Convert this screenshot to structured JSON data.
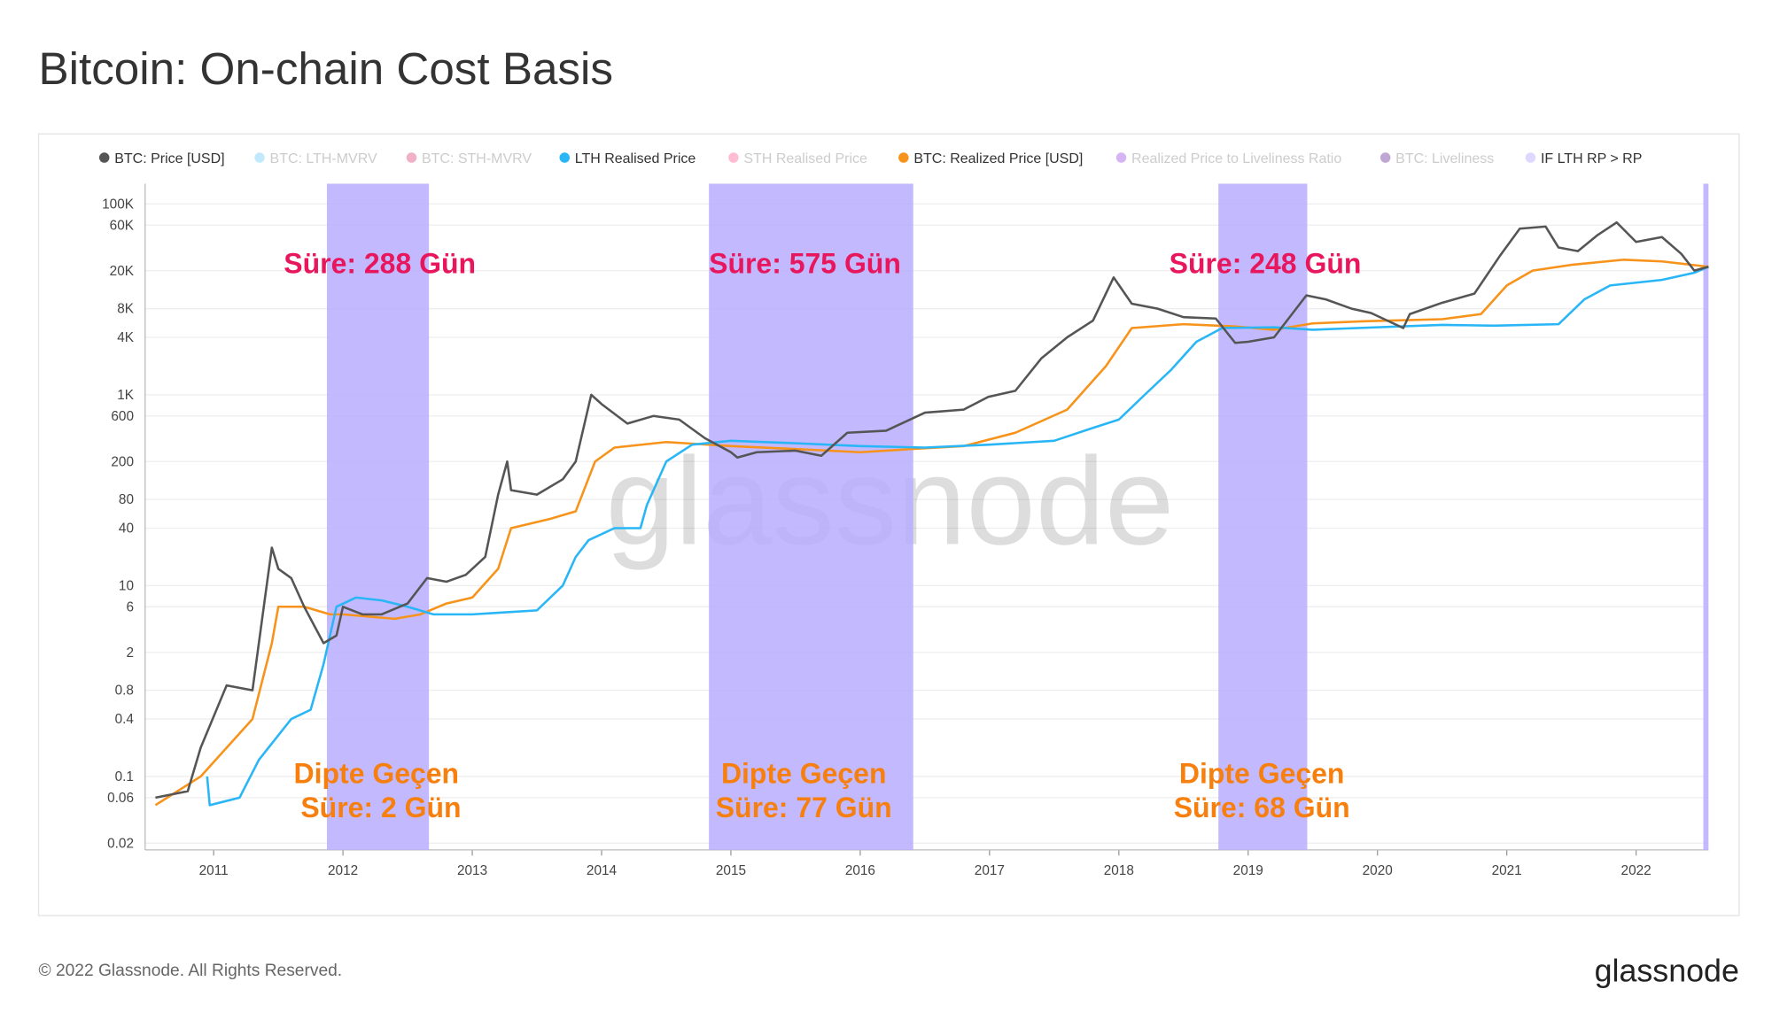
{
  "chart_data": {
    "type": "line",
    "title": "Bitcoin: On-chain Cost Basis",
    "legend": [
      {
        "name": "BTC: Price [USD]",
        "color": "#555555",
        "active": true
      },
      {
        "name": "BTC: LTH-MVRV",
        "color": "#4fc3f7",
        "active": false
      },
      {
        "name": "BTC: STH-MVRV",
        "color": "#d81b60",
        "active": false
      },
      {
        "name": "LTH Realised Price",
        "color": "#29b6f6",
        "active": true
      },
      {
        "name": "STH Realised Price",
        "color": "#ff4081",
        "active": false
      },
      {
        "name": "BTC: Realized Price [USD]",
        "color": "#f7931a",
        "active": true
      },
      {
        "name": "Realized Price to Liveliness Ratio",
        "color": "#8a2be2",
        "active": false
      },
      {
        "name": "BTC: Liveliness",
        "color": "#4b0082",
        "active": false
      },
      {
        "name": "IF LTH RP > RP",
        "color": "#ddd8ff",
        "active": true
      }
    ],
    "series": [
      {
        "name": "BTC: Price [USD]",
        "color": "#555555",
        "x": [
          2010.55,
          2010.8,
          2010.9,
          2011.1,
          2011.3,
          2011.4,
          2011.45,
          2011.5,
          2011.6,
          2011.7,
          2011.85,
          2011.95,
          2012.0,
          2012.15,
          2012.3,
          2012.5,
          2012.65,
          2012.8,
          2012.95,
          2013.1,
          2013.2,
          2013.27,
          2013.3,
          2013.5,
          2013.7,
          2013.8,
          2013.92,
          2014.0,
          2014.2,
          2014.4,
          2014.6,
          2014.8,
          2015.0,
          2015.05,
          2015.2,
          2015.5,
          2015.7,
          2015.9,
          2016.2,
          2016.5,
          2016.8,
          2016.99,
          2017.2,
          2017.4,
          2017.6,
          2017.8,
          2017.96,
          2018.1,
          2018.3,
          2018.5,
          2018.75,
          2018.9,
          2019.0,
          2019.2,
          2019.45,
          2019.6,
          2019.8,
          2019.95,
          2020.2,
          2020.25,
          2020.5,
          2020.75,
          2020.95,
          2021.1,
          2021.3,
          2021.4,
          2021.55,
          2021.7,
          2021.85,
          2022.0,
          2022.2,
          2022.35,
          2022.45,
          2022.56
        ],
        "values": [
          0.06,
          0.07,
          0.2,
          0.9,
          0.8,
          8,
          25,
          15,
          12,
          6,
          2.5,
          3,
          6,
          5,
          5,
          6.5,
          12,
          11,
          13,
          20,
          90,
          200,
          100,
          90,
          130,
          200,
          1000,
          800,
          500,
          600,
          550,
          350,
          250,
          220,
          250,
          260,
          230,
          400,
          420,
          650,
          700,
          950,
          1100,
          2400,
          4000,
          6000,
          17000,
          9000,
          8000,
          6500,
          6300,
          3500,
          3600,
          4000,
          11000,
          10000,
          8000,
          7200,
          5000,
          7000,
          9200,
          11500,
          29000,
          55000,
          58000,
          35000,
          32000,
          47000,
          64000,
          40000,
          45000,
          30000,
          20000,
          22000
        ]
      },
      {
        "name": "LTH Realised Price",
        "color": "#29b6f6",
        "x": [
          2010.95,
          2010.97,
          2011.2,
          2011.35,
          2011.6,
          2011.75,
          2011.85,
          2011.95,
          2012.1,
          2012.3,
          2012.5,
          2012.7,
          2013.0,
          2013.2,
          2013.5,
          2013.7,
          2013.8,
          2013.9,
          2014.1,
          2014.3,
          2014.35,
          2014.5,
          2014.7,
          2015.0,
          2015.5,
          2016.0,
          2016.5,
          2017.0,
          2017.5,
          2017.8,
          2018.0,
          2018.2,
          2018.4,
          2018.6,
          2018.8,
          2019.2,
          2019.5,
          2020.0,
          2020.5,
          2020.9,
          2021.4,
          2021.6,
          2021.8,
          2022.2,
          2022.45,
          2022.56
        ],
        "values": [
          0.1,
          0.05,
          0.06,
          0.15,
          0.4,
          0.5,
          1.5,
          6,
          7.5,
          7,
          6,
          5,
          5,
          5.2,
          5.5,
          10,
          20,
          30,
          40,
          40,
          70,
          200,
          300,
          330,
          310,
          290,
          280,
          300,
          330,
          450,
          550,
          1000,
          1800,
          3600,
          5000,
          5100,
          4800,
          5100,
          5400,
          5300,
          5500,
          10000,
          14000,
          16000,
          19000,
          22000
        ]
      },
      {
        "name": "BTC: Realized Price [USD]",
        "color": "#f7931a",
        "x": [
          2010.55,
          2010.9,
          2011.1,
          2011.3,
          2011.45,
          2011.5,
          2011.7,
          2011.9,
          2012.0,
          2012.4,
          2012.6,
          2012.8,
          2013.0,
          2013.2,
          2013.3,
          2013.6,
          2013.8,
          2013.95,
          2014.1,
          2014.5,
          2015.0,
          2015.5,
          2016.0,
          2016.4,
          2016.8,
          2017.2,
          2017.6,
          2017.9,
          2018.1,
          2018.5,
          2018.9,
          2019.2,
          2019.5,
          2019.9,
          2020.5,
          2020.8,
          2021.0,
          2021.2,
          2021.5,
          2021.9,
          2022.2,
          2022.56
        ],
        "values": [
          0.05,
          0.1,
          0.2,
          0.4,
          2.5,
          6,
          6,
          5,
          5,
          4.5,
          5,
          6.5,
          7.5,
          15,
          40,
          50,
          60,
          200,
          280,
          320,
          290,
          270,
          250,
          270,
          290,
          400,
          700,
          2000,
          5000,
          5500,
          5200,
          4800,
          5600,
          5900,
          6200,
          7000,
          14000,
          20000,
          23000,
          26000,
          25000,
          22000
        ]
      }
    ],
    "regions": {
      "name": "IF LTH RP > RP",
      "color": "#b9adff",
      "ranges": [
        [
          2011.876,
          2012.665
        ],
        [
          2014.83,
          2016.41
        ],
        [
          2018.77,
          2019.457
        ],
        [
          2022.52,
          2022.56
        ]
      ]
    },
    "annotations": [
      {
        "lines": [
          "Süre: 288 Gün"
        ],
        "color": "#e8175d"
      },
      {
        "lines": [
          "Süre: 575 Gün"
        ],
        "color": "#e8175d"
      },
      {
        "lines": [
          "Süre: 248 Gün"
        ],
        "color": "#e8175d"
      },
      {
        "lines": [
          "Dipte Geçen",
          "Süre: 2 Gün"
        ],
        "color": "#f77f0e"
      },
      {
        "lines": [
          "Dipte Geçen",
          "Süre: 77 Gün"
        ],
        "color": "#f77f0e"
      },
      {
        "lines": [
          "Dipte Geçen",
          "Süre: 68 Gün"
        ],
        "color": "#f77f0e"
      }
    ],
    "watermark": "glassnode",
    "log_y": true,
    "grid": true,
    "xlim": [
      2010.47,
      2022.56
    ],
    "xticks": [
      2011,
      2012,
      2013,
      2014,
      2015,
      2016,
      2017,
      2018,
      2019,
      2020,
      2021,
      2022
    ],
    "ylim": [
      0.017,
      163000
    ],
    "yticks": [
      {
        "value": 100000,
        "label": "100K"
      },
      {
        "value": 60000,
        "label": "60K"
      },
      {
        "value": 20000,
        "label": "20K"
      },
      {
        "value": 8000,
        "label": "8K"
      },
      {
        "value": 4000,
        "label": "4K"
      },
      {
        "value": 1000,
        "label": "1K"
      },
      600,
      200,
      80,
      40,
      10,
      6,
      2,
      0.8,
      0.4,
      0.1,
      0.06,
      0.02
    ]
  },
  "footer": {
    "copyright": "© 2022 Glassnode. All Rights Reserved.",
    "logo": "glassnode"
  }
}
